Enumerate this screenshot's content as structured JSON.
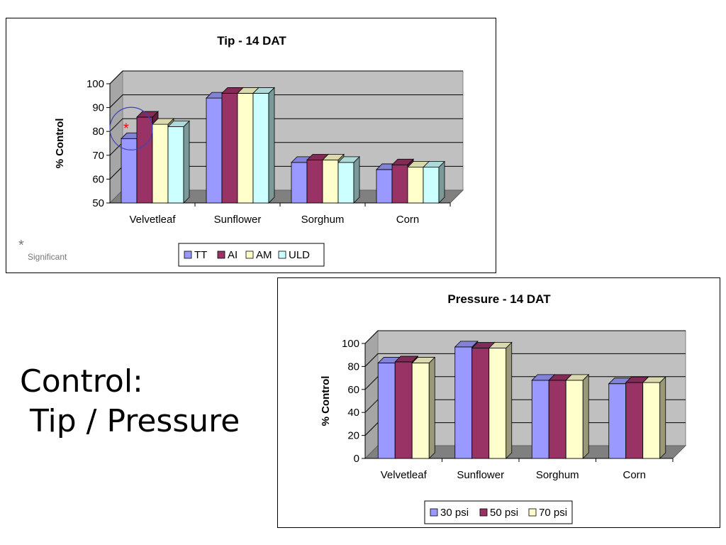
{
  "slide": {
    "title_line1": "Control:",
    "title_line2": " Tip / Pressure",
    "significance_marker": "*",
    "significance_label": "Significant"
  },
  "chart_data": [
    {
      "type": "bar",
      "title": "Tip - 14 DAT",
      "ylabel": "% Control",
      "xlabel": "",
      "ylim": [
        50,
        100
      ],
      "yticks": [
        50,
        60,
        70,
        80,
        90,
        100
      ],
      "categories": [
        "Velvetleaf",
        "Sunflower",
        "Sorghum",
        "Corn"
      ],
      "series": [
        {
          "name": "TT",
          "color": "#9999ff",
          "values": [
            77,
            94,
            67,
            64
          ]
        },
        {
          "name": "AI",
          "color": "#993366",
          "values": [
            86,
            96,
            68,
            66
          ]
        },
        {
          "name": "AM",
          "color": "#ffffcc",
          "values": [
            83,
            96,
            68,
            65
          ]
        },
        {
          "name": "ULD",
          "color": "#ccffff",
          "values": [
            82,
            96,
            67,
            65
          ]
        }
      ],
      "annotations": [
        {
          "text": "*",
          "color": "#ff0000",
          "category": "Velvetleaf",
          "series": "TT"
        }
      ],
      "grid": true,
      "legend_position": "bottom"
    },
    {
      "type": "bar",
      "title": "Pressure - 14 DAT",
      "ylabel": "% Control",
      "xlabel": "",
      "ylim": [
        0,
        100
      ],
      "yticks": [
        0,
        20,
        40,
        60,
        80,
        100
      ],
      "categories": [
        "Velvetleaf",
        "Sunflower",
        "Sorghum",
        "Corn"
      ],
      "series": [
        {
          "name": "30 psi",
          "color": "#9999ff",
          "values": [
            83,
            97,
            68,
            65
          ]
        },
        {
          "name": "50 psi",
          "color": "#993366",
          "values": [
            84,
            96,
            68,
            66
          ]
        },
        {
          "name": "70 psi",
          "color": "#ffffcc",
          "values": [
            83,
            96,
            68,
            66
          ]
        }
      ],
      "grid": true,
      "legend_position": "bottom"
    }
  ]
}
